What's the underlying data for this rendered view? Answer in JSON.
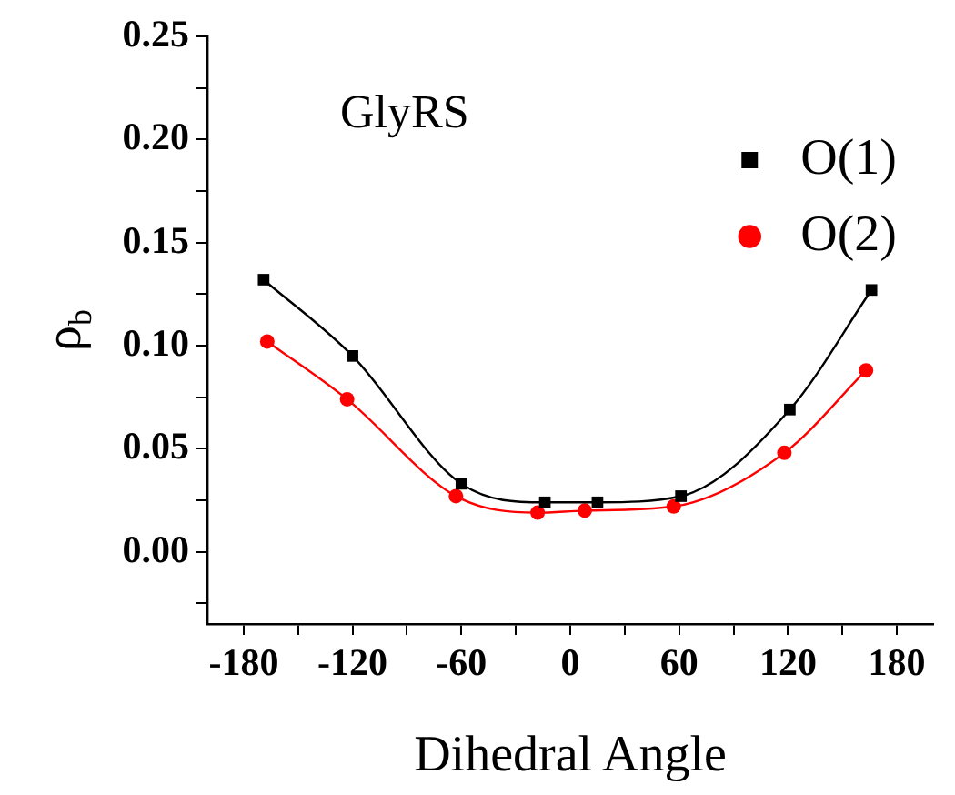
{
  "chart_data": {
    "type": "line",
    "xlabel": "Dihedral Angle",
    "ylabel": "ρ$_{b}$",
    "annotations": [
      "GlyRS"
    ],
    "xlim": [
      -200,
      200
    ],
    "xticks": [
      -180,
      {
        "value": -150,
        "label": null
      },
      -120,
      {
        "value": -90,
        "label": null
      },
      -60,
      {
        "value": -30,
        "label": null
      },
      0,
      {
        "value": 30,
        "label": null
      },
      60,
      {
        "value": 90,
        "label": null
      },
      120,
      {
        "value": 150,
        "label": null
      },
      180
    ],
    "ylim": [
      -0.035,
      0.25
    ],
    "yticks": [
      {
        "value": -0.025,
        "label": null
      },
      {
        "value": 0,
        "label": "0.00"
      },
      {
        "value": 0.025,
        "label": null
      },
      {
        "value": 0.05,
        "label": "0.05"
      },
      {
        "value": 0.075,
        "label": null
      },
      {
        "value": 0.1,
        "label": "0.10"
      },
      {
        "value": 0.125,
        "label": null
      },
      {
        "value": 0.15,
        "label": "0.15"
      },
      {
        "value": 0.175,
        "label": null
      },
      {
        "value": 0.2,
        "label": "0.20"
      },
      {
        "value": 0.225,
        "label": null
      },
      {
        "value": 0.25,
        "label": "0.25"
      }
    ],
    "grid": false,
    "legend": "top right",
    "line_style": "solid",
    "series": [
      {
        "name": "O(1)",
        "color": "#000000",
        "marker": "square",
        "x": [
          -169,
          -120,
          -60,
          -14,
          15,
          61,
          121,
          166
        ],
        "values": [
          0.132,
          0.095,
          0.033,
          0.024,
          0.024,
          0.027,
          0.069,
          0.127
        ]
      },
      {
        "name": "O(2)",
        "color": "#ff0000",
        "marker": "circle",
        "x": [
          -167,
          -123,
          -63,
          -18,
          8,
          57,
          118,
          163
        ],
        "values": [
          0.102,
          0.074,
          0.027,
          0.019,
          0.02,
          0.022,
          0.048,
          0.088
        ]
      }
    ]
  }
}
